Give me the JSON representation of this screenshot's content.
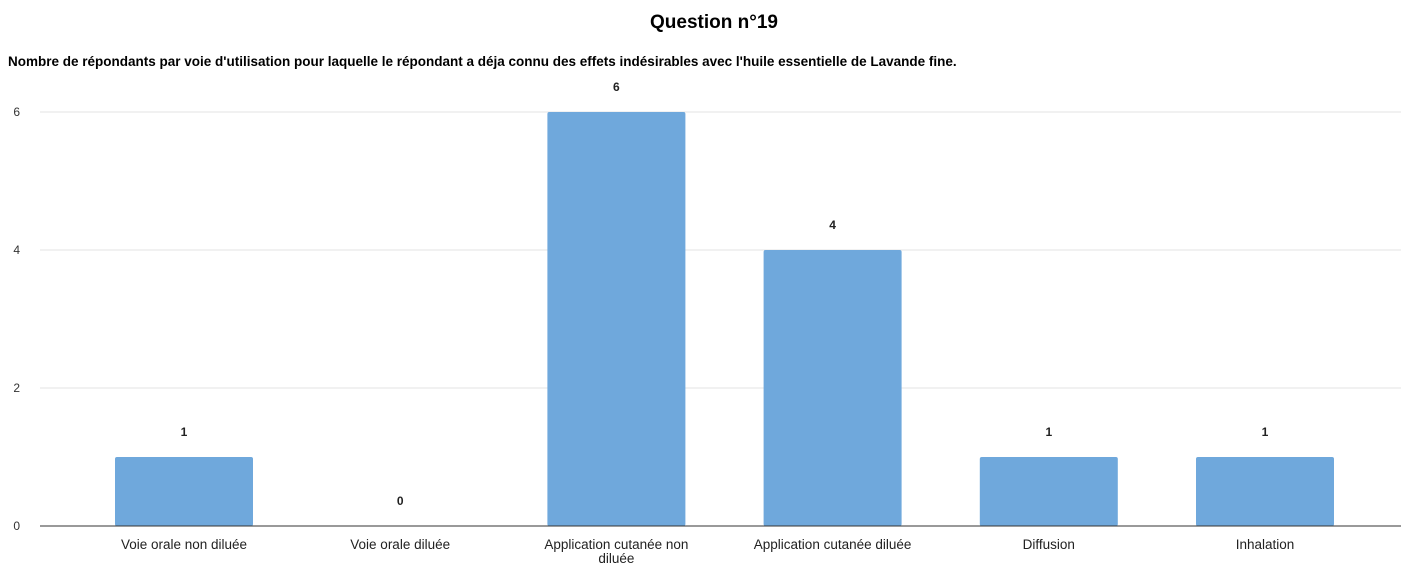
{
  "chart_data": {
    "type": "bar",
    "title": "Question n°19",
    "subtitle": "Nombre de répondants par voie d'utilisation pour laquelle le répondant a déja connu des effets indésirables avec l'huile essentielle de Lavande fine.",
    "xlabel": "",
    "ylabel": "",
    "categories": [
      [
        "Voie orale non diluée"
      ],
      [
        "Voie orale diluée"
      ],
      [
        "Application cutanée non",
        "diluée"
      ],
      [
        "Application cutanée diluée"
      ],
      [
        "Diffusion"
      ],
      [
        "Inhalation"
      ]
    ],
    "values": [
      1,
      0,
      6,
      4,
      1,
      1
    ],
    "data_labels": [
      "1",
      "0",
      "6",
      "4",
      "1",
      "1"
    ],
    "yticks": [
      "0",
      "2",
      "4",
      "6"
    ],
    "ylim": [
      0,
      6
    ],
    "grid": true,
    "legend": "none",
    "bar_color": "#6fa8dc"
  }
}
